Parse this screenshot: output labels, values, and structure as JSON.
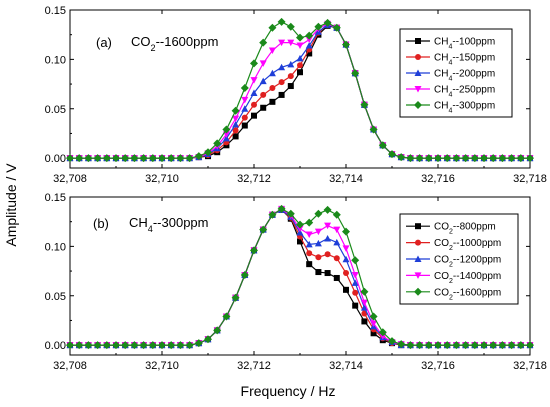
{
  "figure": {
    "ylabel": "Amplitude / V",
    "xlabel": "Frequency / Hz"
  },
  "chart_data": [
    {
      "type": "line",
      "panel_label": "(a)",
      "annotation": {
        "base": "CO",
        "sub": "2",
        "suffix": "--1600ppm"
      },
      "xlim": [
        32708,
        32718
      ],
      "ylim": [
        -0.01,
        0.15
      ],
      "x_ticks": [
        32708,
        32710,
        32712,
        32714,
        32716,
        32718
      ],
      "x_tick_labels": [
        "32,708",
        "32,710",
        "32,712",
        "32,714",
        "32,716",
        "32,718"
      ],
      "y_ticks": [
        0.0,
        0.05,
        0.1,
        0.15
      ],
      "y_tick_labels": [
        "0.00",
        "0.05",
        "0.10",
        "0.15"
      ],
      "legend_position": "top-right",
      "x": [
        32708.0,
        32708.2,
        32708.4,
        32708.6,
        32708.8,
        32709.0,
        32709.2,
        32709.4,
        32709.6,
        32709.8,
        32710.0,
        32710.2,
        32710.4,
        32710.6,
        32710.8,
        32711.0,
        32711.2,
        32711.4,
        32711.6,
        32711.8,
        32712.0,
        32712.2,
        32712.4,
        32712.6,
        32712.8,
        32713.0,
        32713.2,
        32713.4,
        32713.6,
        32713.8,
        32714.0,
        32714.2,
        32714.4,
        32714.6,
        32714.8,
        32715.0,
        32715.2,
        32715.4,
        32715.6,
        32715.8,
        32716.0,
        32716.2,
        32716.4,
        32716.6,
        32716.8,
        32717.0,
        32717.2,
        32717.4,
        32717.6,
        32717.8,
        32718.0
      ],
      "series": [
        {
          "name_base": "CH",
          "name_sub": "4",
          "name_suffix": "--100ppm",
          "color": "#000000",
          "marker": "square",
          "values": [
            0,
            0,
            0,
            0,
            0,
            0,
            0,
            0,
            0,
            0,
            0,
            0,
            0,
            0,
            0.001,
            0.002,
            0.006,
            0.013,
            0.022,
            0.033,
            0.043,
            0.051,
            0.057,
            0.064,
            0.073,
            0.087,
            0.106,
            0.125,
            0.134,
            0.132,
            0.115,
            0.086,
            0.054,
            0.029,
            0.013,
            0.004,
            0.001,
            0,
            0,
            0,
            0,
            0,
            0,
            0,
            0,
            0,
            0,
            0,
            0,
            0,
            0
          ]
        },
        {
          "name_base": "CH",
          "name_sub": "4",
          "name_suffix": "--150ppm",
          "color": "#e02020",
          "marker": "circle",
          "values": [
            0,
            0,
            0,
            0,
            0,
            0,
            0,
            0,
            0,
            0,
            0,
            0,
            0,
            0,
            0.001,
            0.003,
            0.008,
            0.016,
            0.028,
            0.041,
            0.054,
            0.064,
            0.071,
            0.077,
            0.083,
            0.094,
            0.11,
            0.127,
            0.135,
            0.132,
            0.115,
            0.086,
            0.054,
            0.029,
            0.013,
            0.004,
            0.001,
            0,
            0,
            0,
            0,
            0,
            0,
            0,
            0,
            0,
            0,
            0,
            0,
            0,
            0
          ]
        },
        {
          "name_base": "CH",
          "name_sub": "4",
          "name_suffix": "--200ppm",
          "color": "#1f3fd8",
          "marker": "triangle-up",
          "values": [
            0,
            0,
            0,
            0,
            0,
            0,
            0,
            0,
            0,
            0,
            0,
            0,
            0,
            0,
            0.001,
            0.004,
            0.01,
            0.02,
            0.034,
            0.05,
            0.066,
            0.078,
            0.086,
            0.092,
            0.095,
            0.101,
            0.114,
            0.128,
            0.135,
            0.132,
            0.115,
            0.086,
            0.054,
            0.029,
            0.013,
            0.004,
            0.001,
            0,
            0,
            0,
            0,
            0,
            0,
            0,
            0,
            0,
            0,
            0,
            0,
            0,
            0
          ]
        },
        {
          "name_base": "CH",
          "name_sub": "4",
          "name_suffix": "--250ppm",
          "color": "#ff00ff",
          "marker": "triangle-down",
          "values": [
            0,
            0,
            0,
            0,
            0,
            0,
            0,
            0,
            0,
            0,
            0,
            0,
            0,
            0,
            0.001,
            0.005,
            0.012,
            0.024,
            0.04,
            0.059,
            0.079,
            0.096,
            0.109,
            0.117,
            0.117,
            0.114,
            0.12,
            0.131,
            0.136,
            0.132,
            0.115,
            0.086,
            0.054,
            0.029,
            0.013,
            0.004,
            0.001,
            0,
            0,
            0,
            0,
            0,
            0,
            0,
            0,
            0,
            0,
            0,
            0,
            0,
            0
          ]
        },
        {
          "name_base": "CH",
          "name_sub": "4",
          "name_suffix": "--300ppm",
          "color": "#1a8a1a",
          "marker": "diamond",
          "values": [
            0,
            0,
            0,
            0,
            0,
            0,
            0,
            0,
            0,
            0,
            0,
            0,
            0,
            0,
            0.002,
            0.006,
            0.015,
            0.029,
            0.048,
            0.071,
            0.096,
            0.117,
            0.132,
            0.138,
            0.133,
            0.122,
            0.124,
            0.133,
            0.137,
            0.132,
            0.115,
            0.086,
            0.054,
            0.029,
            0.013,
            0.004,
            0.001,
            0,
            0,
            0,
            0,
            0,
            0,
            0,
            0,
            0,
            0,
            0,
            0,
            0,
            0
          ]
        }
      ]
    },
    {
      "type": "line",
      "panel_label": "(b)",
      "annotation": {
        "base": "CH",
        "sub": "4",
        "suffix": "--300ppm"
      },
      "xlim": [
        32708,
        32718
      ],
      "ylim": [
        -0.01,
        0.15
      ],
      "x_ticks": [
        32708,
        32710,
        32712,
        32714,
        32716,
        32718
      ],
      "x_tick_labels": [
        "32,708",
        "32,710",
        "32,712",
        "32,714",
        "32,716",
        "32,718"
      ],
      "y_ticks": [
        0.0,
        0.05,
        0.1,
        0.15
      ],
      "y_tick_labels": [
        "0.00",
        "0.05",
        "0.10",
        "0.15"
      ],
      "legend_position": "top-right",
      "x": [
        32708.0,
        32708.2,
        32708.4,
        32708.6,
        32708.8,
        32709.0,
        32709.2,
        32709.4,
        32709.6,
        32709.8,
        32710.0,
        32710.2,
        32710.4,
        32710.6,
        32710.8,
        32711.0,
        32711.2,
        32711.4,
        32711.6,
        32711.8,
        32712.0,
        32712.2,
        32712.4,
        32712.6,
        32712.8,
        32713.0,
        32713.2,
        32713.4,
        32713.6,
        32713.8,
        32714.0,
        32714.2,
        32714.4,
        32714.6,
        32714.8,
        32715.0,
        32715.2,
        32715.4,
        32715.6,
        32715.8,
        32716.0,
        32716.2,
        32716.4,
        32716.6,
        32716.8,
        32717.0,
        32717.2,
        32717.4,
        32717.6,
        32717.8,
        32718.0
      ],
      "series": [
        {
          "name_base": "CO",
          "name_sub": "2",
          "name_suffix": "--800ppm",
          "color": "#000000",
          "marker": "square",
          "values": [
            0,
            0,
            0,
            0,
            0,
            0,
            0,
            0,
            0,
            0,
            0,
            0,
            0,
            0,
            0.002,
            0.006,
            0.015,
            0.029,
            0.048,
            0.071,
            0.096,
            0.117,
            0.132,
            0.137,
            0.128,
            0.105,
            0.082,
            0.074,
            0.073,
            0.068,
            0.056,
            0.04,
            0.024,
            0.012,
            0.005,
            0.002,
            0,
            0,
            0,
            0,
            0,
            0,
            0,
            0,
            0,
            0,
            0,
            0,
            0,
            0,
            0
          ]
        },
        {
          "name_base": "CO",
          "name_sub": "2",
          "name_suffix": "--1000ppm",
          "color": "#e02020",
          "marker": "circle",
          "values": [
            0,
            0,
            0,
            0,
            0,
            0,
            0,
            0,
            0,
            0,
            0,
            0,
            0,
            0,
            0.002,
            0.006,
            0.015,
            0.029,
            0.048,
            0.071,
            0.096,
            0.117,
            0.132,
            0.137,
            0.129,
            0.11,
            0.093,
            0.089,
            0.092,
            0.088,
            0.073,
            0.053,
            0.032,
            0.016,
            0.007,
            0.002,
            0,
            0,
            0,
            0,
            0,
            0,
            0,
            0,
            0,
            0,
            0,
            0,
            0,
            0,
            0
          ]
        },
        {
          "name_base": "CO",
          "name_sub": "2",
          "name_suffix": "--1200ppm",
          "color": "#1f3fd8",
          "marker": "triangle-up",
          "values": [
            0,
            0,
            0,
            0,
            0,
            0,
            0,
            0,
            0,
            0,
            0,
            0,
            0,
            0,
            0.002,
            0.006,
            0.015,
            0.029,
            0.048,
            0.071,
            0.096,
            0.117,
            0.132,
            0.137,
            0.13,
            0.114,
            0.102,
            0.103,
            0.108,
            0.104,
            0.087,
            0.063,
            0.038,
            0.019,
            0.008,
            0.003,
            0,
            0,
            0,
            0,
            0,
            0,
            0,
            0,
            0,
            0,
            0,
            0,
            0,
            0,
            0
          ]
        },
        {
          "name_base": "CO",
          "name_sub": "2",
          "name_suffix": "--1400ppm",
          "color": "#ff00ff",
          "marker": "triangle-down",
          "values": [
            0,
            0,
            0,
            0,
            0,
            0,
            0,
            0,
            0,
            0,
            0,
            0,
            0,
            0,
            0.002,
            0.006,
            0.015,
            0.029,
            0.048,
            0.071,
            0.096,
            0.117,
            0.132,
            0.138,
            0.131,
            0.118,
            0.112,
            0.115,
            0.121,
            0.117,
            0.098,
            0.071,
            0.043,
            0.022,
            0.009,
            0.003,
            0.001,
            0,
            0,
            0,
            0,
            0,
            0,
            0,
            0,
            0,
            0,
            0,
            0,
            0,
            0
          ]
        },
        {
          "name_base": "CO",
          "name_sub": "2",
          "name_suffix": "--1600ppm",
          "color": "#1a8a1a",
          "marker": "diamond",
          "values": [
            0,
            0,
            0,
            0,
            0,
            0,
            0,
            0,
            0,
            0,
            0,
            0,
            0,
            0,
            0.002,
            0.006,
            0.015,
            0.029,
            0.048,
            0.071,
            0.096,
            0.117,
            0.132,
            0.138,
            0.133,
            0.122,
            0.124,
            0.133,
            0.137,
            0.132,
            0.115,
            0.086,
            0.054,
            0.029,
            0.013,
            0.004,
            0.001,
            0,
            0,
            0,
            0,
            0,
            0,
            0,
            0,
            0,
            0,
            0,
            0,
            0,
            0
          ]
        }
      ]
    }
  ]
}
